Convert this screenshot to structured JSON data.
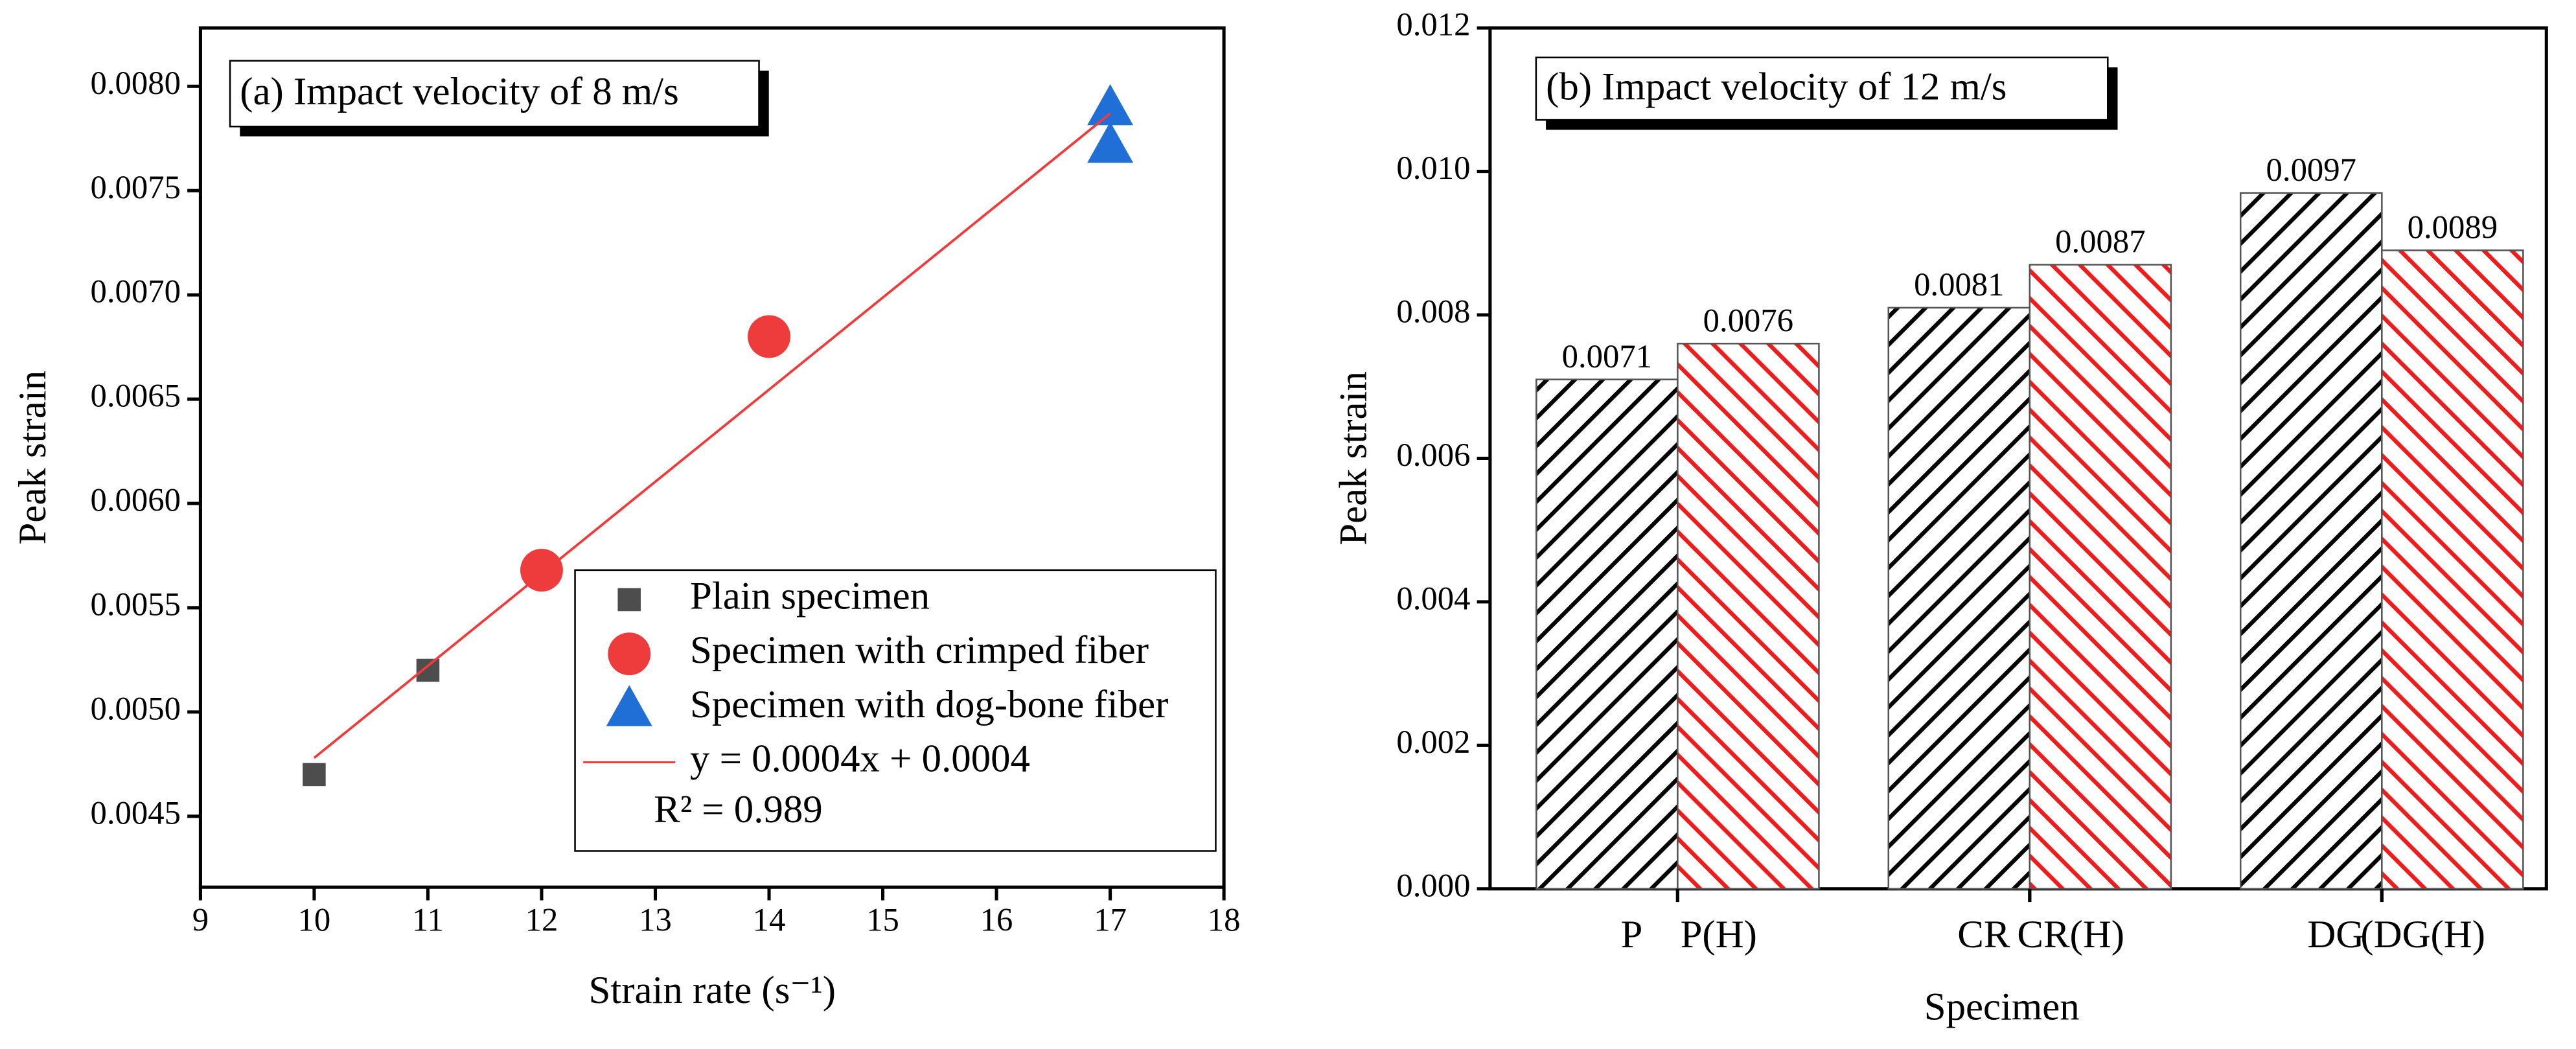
{
  "chart_data": [
    {
      "type": "scatter",
      "title": "(a) Impact velocity of 8 m/s",
      "x_label": "Strain rate (s⁻¹)",
      "y_label": "Peak strain",
      "xlim": [
        9,
        18
      ],
      "xticks": [
        9,
        10,
        11,
        12,
        13,
        14,
        15,
        16,
        17,
        18
      ],
      "ylim": [
        0.00416,
        0.00828
      ],
      "yticks": [
        0.0045,
        {
          "value": 0.005,
          "label": "0.0050"
        },
        0.0055,
        {
          "value": 0.006,
          "label": "0.0060"
        },
        0.0065,
        {
          "value": 0.007,
          "label": "0.0070"
        },
        0.0075,
        {
          "value": 0.008,
          "label": "0.0080"
        }
      ],
      "series": [
        {
          "name": "Plain specimen",
          "color": "#4d4d4d",
          "marker": "square",
          "x": [
            10,
            11
          ],
          "values": [
            0.0047,
            0.0052
          ]
        },
        {
          "name": "Specimen with crimped fiber",
          "color": "#ee3b3b",
          "marker": "circle",
          "x": [
            12,
            14
          ],
          "values": [
            0.00568,
            0.0068
          ]
        },
        {
          "name": "Specimen with dog-bone fiber",
          "color": "#1f6fd6",
          "marker": "triangle",
          "x": [
            17,
            17
          ],
          "values": [
            0.0079,
            0.00772
          ]
        },
        {
          "name": "y = 0.0004x + 0.0004",
          "color": "#ee3b3b",
          "marker": "line",
          "x": [
            10,
            17
          ],
          "values": [
            0.00478,
            0.00787
          ]
        }
      ],
      "annotation": "R² = 0.989"
    },
    {
      "type": "bar",
      "title": "(b) Impact velocity of 12 m/s",
      "x_label": "Specimen",
      "y_label": "Peak strain",
      "categories": [
        "P",
        "P(H)",
        "CR",
        "CR(H)",
        "DG",
        "(DG(H)"
      ],
      "values": [
        0.0071,
        0.0076,
        0.0081,
        0.0087,
        0.0097,
        0.0089
      ],
      "colors": [
        "#000000",
        "#ee1c1c",
        "#000000",
        "#ee1c1c",
        "#000000",
        "#ee1c1c"
      ],
      "ylim": [
        0,
        0.012
      ],
      "yticks": [
        {
          "value": 0,
          "label": "0.000"
        },
        {
          "value": 0.002,
          "label": "0.002"
        },
        {
          "value": 0.004,
          "label": "0.004"
        },
        {
          "value": 0.006,
          "label": "0.006"
        },
        {
          "value": 0.008,
          "label": "0.008"
        },
        {
          "value": 0.01,
          "label": "0.010"
        },
        {
          "value": 0.012,
          "label": "0.012"
        }
      ]
    }
  ]
}
